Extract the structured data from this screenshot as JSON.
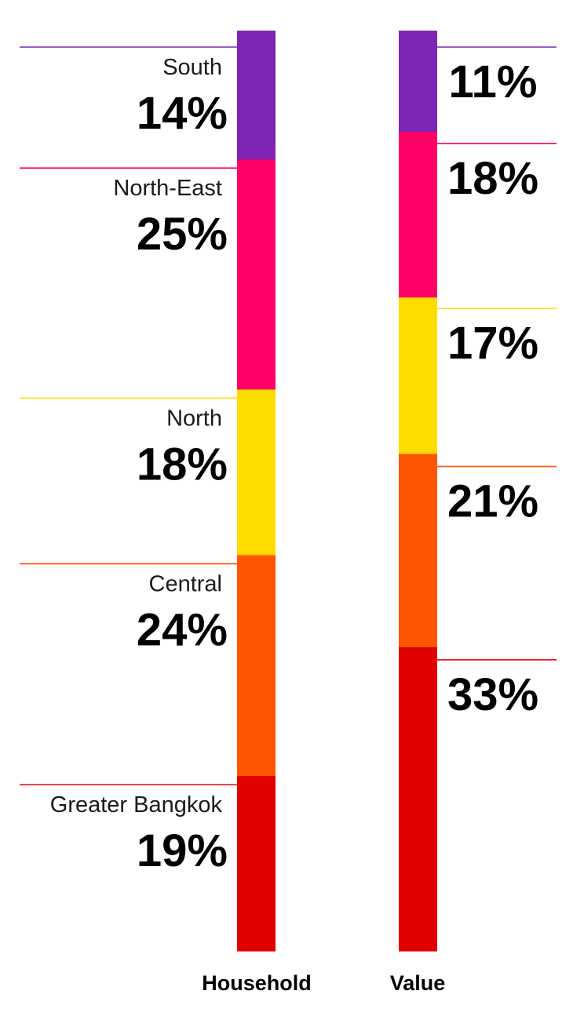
{
  "chart_data": {
    "type": "bar",
    "stacked": true,
    "orientation": "vertical",
    "unit": "%",
    "categories": [
      "Household",
      "Value"
    ],
    "segments": [
      {
        "name": "South",
        "color": "#7d25b5",
        "values": [
          14,
          11
        ]
      },
      {
        "name": "North-East",
        "color": "#ff0066",
        "values": [
          25,
          18
        ]
      },
      {
        "name": "North",
        "color": "#ffdc00",
        "values": [
          18,
          17
        ]
      },
      {
        "name": "Central",
        "color": "#ff5500",
        "values": [
          24,
          21
        ]
      },
      {
        "name": "Greater Bangkok",
        "color": "#e00000",
        "values": [
          19,
          33
        ]
      }
    ],
    "legend": "none",
    "grid": false
  }
}
